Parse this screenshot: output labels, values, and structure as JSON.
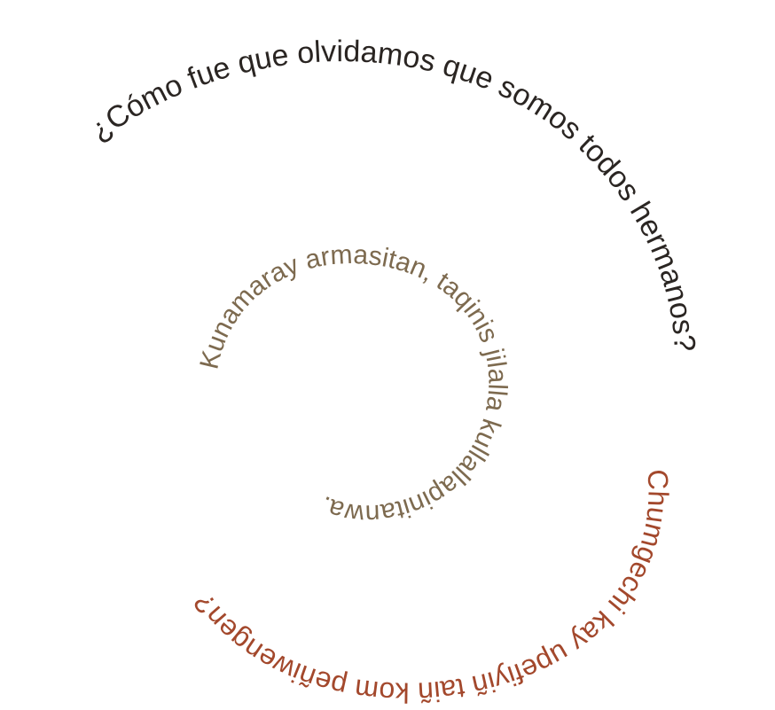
{
  "colors": {
    "background": "#ffffff",
    "spanish": "#2a2522",
    "aymara": "#7d6a4f",
    "mapudungun": "#a3482c"
  },
  "lines": {
    "spanish": "¿Cómo fue que olvidamos que somos todos hermanos?",
    "aymara": "Kunamaray armasitan, taqinis jilalla kullallapinitanwa.",
    "mapudungun": "Chumgechi kay upefiyiñ taiñ kom peñiwengen?"
  }
}
